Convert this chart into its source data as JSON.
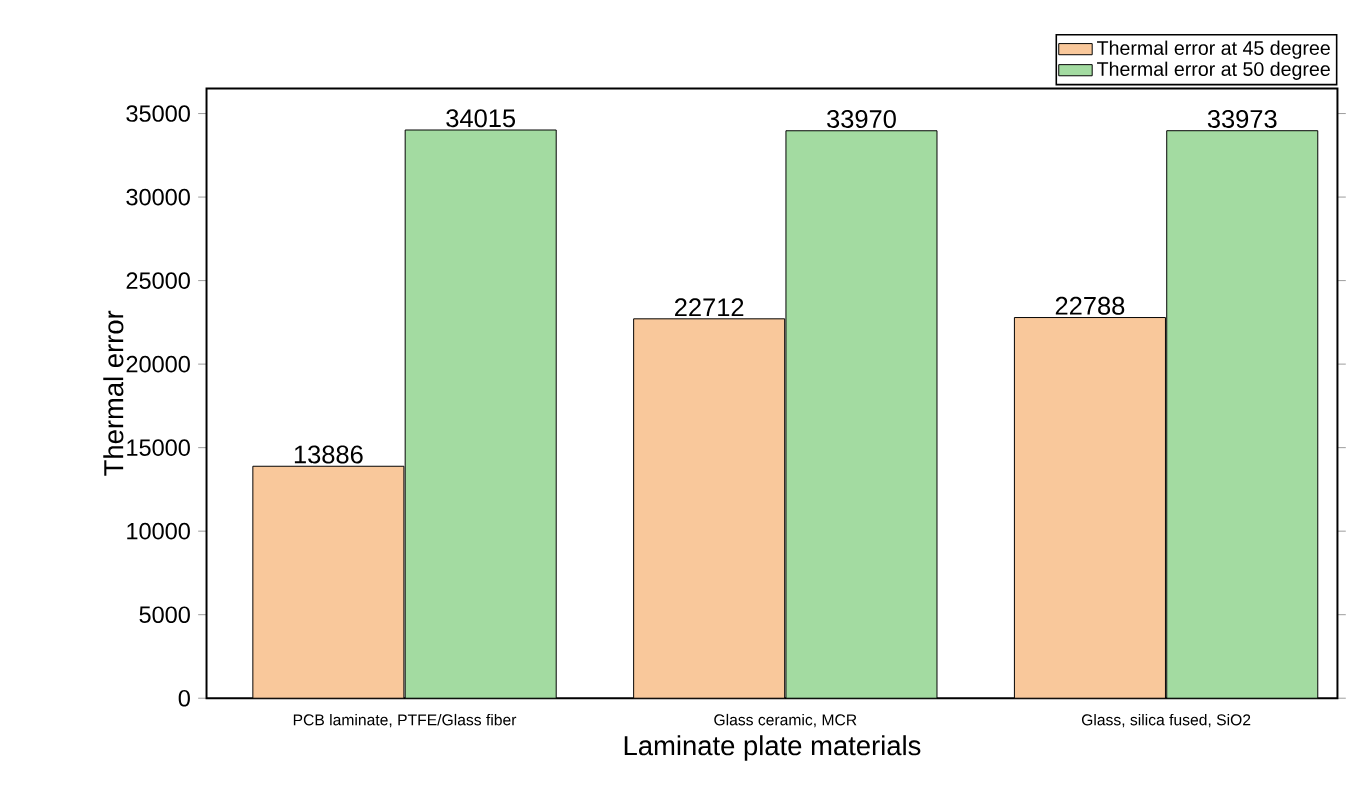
{
  "chart_data": {
    "type": "bar",
    "xlabel": "Laminate plate materials",
    "ylabel": "Thermal error",
    "categories": [
      "PCB laminate, PTFE/Glass fiber",
      "Glass ceramic, MCR",
      "Glass, silica fused, SiO2"
    ],
    "series": [
      {
        "name": "Thermal error at 45 degree",
        "color": "#f9c89b",
        "values": [
          13886,
          22712,
          22788
        ]
      },
      {
        "name": "Thermal error at 50 degree",
        "color": "#a3dba1",
        "values": [
          34015,
          33970,
          33973
        ]
      }
    ],
    "ylim": [
      0,
      36500
    ],
    "yticks": [
      0,
      5000,
      10000,
      15000,
      20000,
      25000,
      30000,
      35000
    ],
    "data_labels": true,
    "legend": "top right",
    "grid": false
  }
}
